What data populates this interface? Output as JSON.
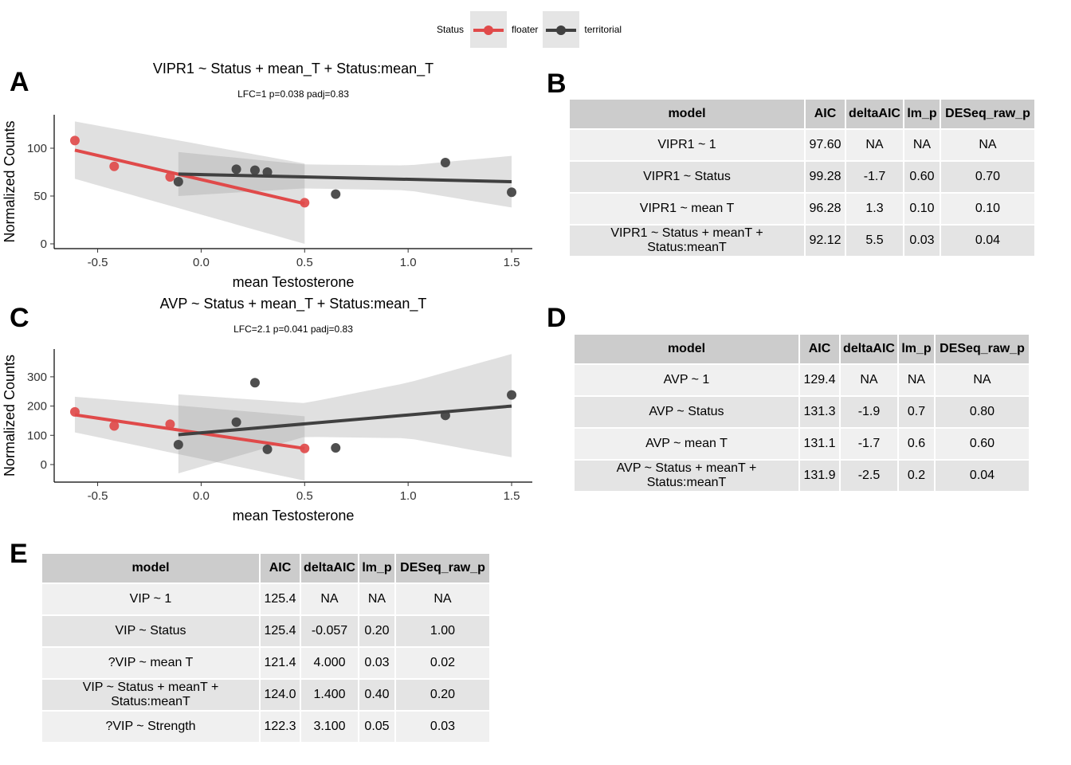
{
  "legend": {
    "title": "Status",
    "items": [
      {
        "label": "floater",
        "color": "#e04a4a"
      },
      {
        "label": "territorial",
        "color": "#404040"
      }
    ]
  },
  "panels": {
    "a": "A",
    "b": "B",
    "c": "C",
    "d": "D",
    "e": "E"
  },
  "chart_data": [
    {
      "type": "scatter",
      "title": "VIPR1 ~ Status + mean_T + Status:mean_T",
      "subtitle": "LFC=1 p=0.038 padj=0.83",
      "xlabel": "mean Testosterone",
      "ylabel": "Normalized Counts",
      "xlim": [
        -0.71,
        1.6
      ],
      "ylim": [
        -5,
        135
      ],
      "xticks": [
        -0.5,
        0.0,
        0.5,
        1.0,
        1.5
      ],
      "xtick_labels": [
        "-0.5",
        "0.0",
        "0.5",
        "1.0",
        "1.5"
      ],
      "yticks": [
        0,
        50,
        100
      ],
      "ytick_labels": [
        "0",
        "50",
        "100"
      ],
      "series": [
        {
          "name": "floater",
          "color": "#e04a4a",
          "points": [
            [
              -0.61,
              108
            ],
            [
              -0.42,
              81
            ],
            [
              -0.15,
              70
            ],
            [
              0.5,
              43
            ]
          ],
          "fit": [
            [
              -0.61,
              98
            ],
            [
              0.5,
              42
            ]
          ],
          "band": {
            "x": [
              -0.61,
              0.5
            ],
            "lower": [
              68,
              0
            ],
            "upper": [
              128,
              84
            ]
          }
        },
        {
          "name": "territorial",
          "color": "#404040",
          "points": [
            [
              -0.11,
              65
            ],
            [
              0.17,
              78
            ],
            [
              0.26,
              77
            ],
            [
              0.32,
              75
            ],
            [
              0.65,
              52
            ],
            [
              1.18,
              85
            ],
            [
              1.5,
              54
            ]
          ],
          "fit": [
            [
              -0.11,
              73
            ],
            [
              1.5,
              65
            ]
          ],
          "band": {
            "x": [
              -0.11,
              0.5,
              1.0,
              1.5
            ],
            "lower": [
              50,
              58,
              56,
              38
            ],
            "upper": [
              96,
              83,
              82,
              92
            ]
          }
        }
      ]
    },
    {
      "type": "scatter",
      "title": "AVP ~ Status + mean_T + Status:mean_T",
      "subtitle": "LFC=2.1 p=0.041 padj=0.83",
      "xlabel": "mean Testosterone",
      "ylabel": "Normalized Counts",
      "xlim": [
        -0.71,
        1.6
      ],
      "ylim": [
        -60,
        395
      ],
      "xticks": [
        -0.5,
        0.0,
        0.5,
        1.0,
        1.5
      ],
      "xtick_labels": [
        "-0.5",
        "0.0",
        "0.5",
        "1.0",
        "1.5"
      ],
      "yticks": [
        0,
        100,
        200,
        300
      ],
      "ytick_labels": [
        "0",
        "100",
        "200",
        "300"
      ],
      "series": [
        {
          "name": "floater",
          "color": "#e04a4a",
          "points": [
            [
              -0.61,
              180
            ],
            [
              -0.42,
              132
            ],
            [
              -0.15,
              138
            ],
            [
              0.5,
              55
            ]
          ],
          "fit": [
            [
              -0.61,
              170
            ],
            [
              0.5,
              55
            ]
          ],
          "band": {
            "x": [
              -0.61,
              0.5
            ],
            "lower": [
              110,
              -55
            ],
            "upper": [
              232,
              165
            ]
          }
        },
        {
          "name": "territorial",
          "color": "#404040",
          "points": [
            [
              -0.11,
              68
            ],
            [
              0.17,
              145
            ],
            [
              0.26,
              280
            ],
            [
              0.32,
              52
            ],
            [
              0.65,
              57
            ],
            [
              1.18,
              168
            ],
            [
              1.5,
              238
            ]
          ],
          "fit": [
            [
              -0.11,
              102
            ],
            [
              1.5,
              200
            ]
          ],
          "band": {
            "x": [
              -0.11,
              0.5,
              1.0,
              1.5
            ],
            "lower": [
              -30,
              95,
              90,
              25
            ],
            "upper": [
              240,
              210,
              280,
              378
            ]
          }
        }
      ]
    }
  ],
  "tables": {
    "b": {
      "headers": [
        "model",
        "AIC",
        "deltaAIC",
        "lm_p",
        "DESeq_raw_p"
      ],
      "rows": [
        [
          "VIPR1 ~ 1",
          "97.60",
          "NA",
          "NA",
          "NA"
        ],
        [
          "VIPR1 ~ Status",
          "99.28",
          "-1.7",
          "0.60",
          "0.70"
        ],
        [
          "VIPR1 ~ mean T",
          "96.28",
          "1.3",
          "0.10",
          "0.10"
        ],
        [
          "VIPR1 ~ Status + meanT + Status:meanT",
          "92.12",
          "5.5",
          "0.03",
          "0.04"
        ]
      ]
    },
    "d": {
      "headers": [
        "model",
        "AIC",
        "deltaAIC",
        "lm_p",
        "DESeq_raw_p"
      ],
      "rows": [
        [
          "AVP ~ 1",
          "129.4",
          "NA",
          "NA",
          "NA"
        ],
        [
          "AVP ~ Status",
          "131.3",
          "-1.9",
          "0.7",
          "0.80"
        ],
        [
          "AVP ~ mean T",
          "131.1",
          "-1.7",
          "0.6",
          "0.60"
        ],
        [
          "AVP ~ Status + meanT + Status:meanT",
          "131.9",
          "-2.5",
          "0.2",
          "0.04"
        ]
      ]
    },
    "e": {
      "headers": [
        "model",
        "AIC",
        "deltaAIC",
        "lm_p",
        "DESeq_raw_p"
      ],
      "rows": [
        [
          "VIP ~ 1",
          "125.4",
          "NA",
          "NA",
          "NA"
        ],
        [
          "VIP ~ Status",
          "125.4",
          "-0.057",
          "0.20",
          "1.00"
        ],
        [
          "?VIP ~ mean T",
          "121.4",
          "4.000",
          "0.03",
          "0.02"
        ],
        [
          "VIP ~ Status + meanT + Status:meanT",
          "124.0",
          "1.400",
          "0.40",
          "0.20"
        ],
        [
          "?VIP ~ Strength",
          "122.3",
          "3.100",
          "0.05",
          "0.03"
        ]
      ]
    }
  }
}
